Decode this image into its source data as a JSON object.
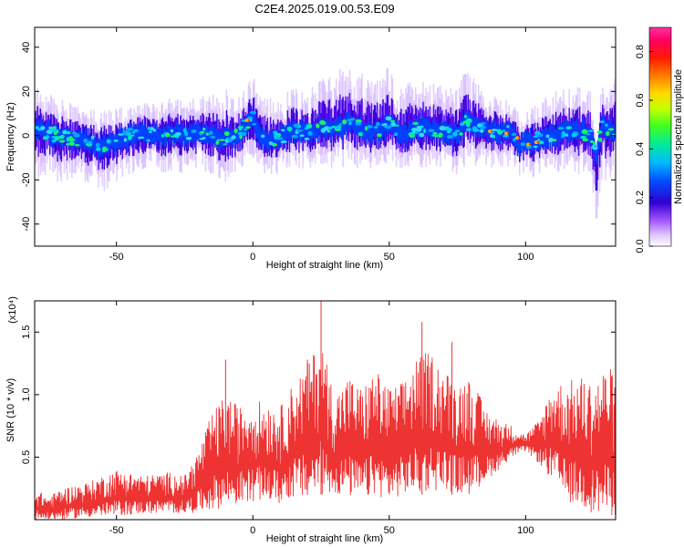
{
  "title": "C2E4.2025.019.00.53.E09",
  "chart_data": [
    {
      "type": "heatmap",
      "xlabel": "Height of straight line (km)",
      "ylabel": "Frequency (Hz)",
      "xlim": [
        -80,
        133
      ],
      "ylim": [
        -50,
        49
      ],
      "xticks": [
        -50,
        0,
        50,
        100
      ],
      "yticks": [
        -40,
        -20,
        0,
        20,
        40
      ],
      "colorbar": {
        "label": "Normalized spectral amplitude",
        "range": [
          0,
          0.9
        ],
        "ticks": [
          0.0,
          0.2,
          0.4,
          0.6,
          0.8
        ]
      },
      "envelope": {
        "x": [
          -80,
          -78,
          -75,
          -70,
          -65,
          -60,
          -55,
          -50,
          -45,
          -40,
          -35,
          -30,
          -25,
          -20,
          -15,
          -10,
          -5,
          -2,
          0,
          2,
          5,
          10,
          15,
          20,
          25,
          30,
          35,
          40,
          45,
          50,
          55,
          60,
          65,
          70,
          75,
          78,
          80,
          85,
          90,
          95,
          98,
          100,
          103,
          105,
          110,
          115,
          120,
          124,
          126,
          128,
          130,
          133
        ],
        "center": [
          2,
          3,
          1,
          0,
          -2,
          -3,
          -5,
          -3,
          0,
          1,
          0,
          1,
          0,
          1,
          0,
          -1,
          0,
          6,
          8,
          0,
          -2,
          -1,
          2,
          1,
          4,
          3,
          6,
          3,
          2,
          5,
          0,
          4,
          2,
          1,
          0,
          6,
          5,
          3,
          2,
          1,
          -5,
          -2,
          -3,
          -1,
          0,
          3,
          2,
          0,
          -10,
          5,
          2,
          3
        ],
        "peak": [
          18,
          25,
          18,
          15,
          13,
          12,
          10,
          12,
          14,
          15,
          14,
          16,
          15,
          16,
          18,
          20,
          16,
          22,
          28,
          18,
          16,
          17,
          20,
          18,
          24,
          28,
          30,
          26,
          22,
          30,
          20,
          25,
          24,
          20,
          22,
          28,
          26,
          18,
          16,
          15,
          8,
          10,
          12,
          14,
          18,
          22,
          20,
          18,
          -5,
          25,
          22,
          24
        ],
        "trough": [
          -14,
          -20,
          -18,
          -20,
          -18,
          -20,
          -24,
          -20,
          -16,
          -14,
          -16,
          -15,
          -16,
          -14,
          -16,
          -20,
          -14,
          -10,
          -10,
          -14,
          -16,
          -16,
          -14,
          -14,
          -12,
          -14,
          -12,
          -14,
          -14,
          -12,
          -14,
          -12,
          -14,
          -14,
          -16,
          -12,
          -12,
          -12,
          -14,
          -12,
          -18,
          -16,
          -18,
          -16,
          -16,
          -14,
          -16,
          -16,
          -38,
          -18,
          -20,
          -16
        ]
      }
    },
    {
      "type": "line",
      "xlabel": "Height of straight line (km)",
      "ylabel": "SNR (10 * v/v)",
      "y_multiplier": "(x10⁴)",
      "xlim": [
        -80,
        133
      ],
      "ylim": [
        0,
        1.75
      ],
      "xticks": [
        -50,
        0,
        50,
        100
      ],
      "yticks": [
        0.5,
        1.0,
        1.5
      ],
      "series": [
        {
          "color": "#ee3333",
          "envelope_x": [
            -80,
            -75,
            -70,
            -60,
            -50,
            -40,
            -30,
            -25,
            -20,
            -15,
            -10,
            -5,
            0,
            5,
            10,
            15,
            20,
            25,
            30,
            35,
            40,
            45,
            50,
            55,
            60,
            65,
            70,
            75,
            80,
            85,
            90,
            95,
            100,
            105,
            110,
            115,
            120,
            125,
            130,
            133
          ],
          "envelope_max": [
            0.25,
            0.18,
            0.25,
            0.3,
            0.4,
            0.35,
            0.38,
            0.35,
            0.55,
            0.85,
            1.0,
            0.9,
            0.95,
            0.95,
            0.9,
            1.1,
            1.25,
            1.45,
            1.0,
            1.15,
            1.05,
            1.2,
            1.05,
            1.1,
            1.3,
            1.35,
            1.2,
            1.1,
            1.15,
            0.9,
            0.8,
            0.75,
            0.68,
            0.8,
            1.1,
            1.1,
            1.15,
            1.1,
            1.25,
            1.15
          ],
          "envelope_min": [
            0.0,
            0.0,
            0.0,
            0.02,
            0.03,
            0.05,
            0.05,
            0.05,
            0.06,
            0.08,
            0.1,
            0.12,
            0.15,
            0.15,
            0.12,
            0.18,
            0.15,
            0.2,
            0.2,
            0.18,
            0.15,
            0.2,
            0.15,
            0.2,
            0.2,
            0.22,
            0.25,
            0.2,
            0.2,
            0.3,
            0.4,
            0.5,
            0.55,
            0.45,
            0.3,
            0.15,
            0.1,
            0.05,
            0.02,
            0.02
          ],
          "spikes": [
            [
              25,
              1.75
            ],
            [
              20,
              1.28
            ],
            [
              62,
              1.58
            ],
            [
              73,
              1.42
            ],
            [
              -10,
              1.28
            ]
          ]
        }
      ]
    }
  ]
}
